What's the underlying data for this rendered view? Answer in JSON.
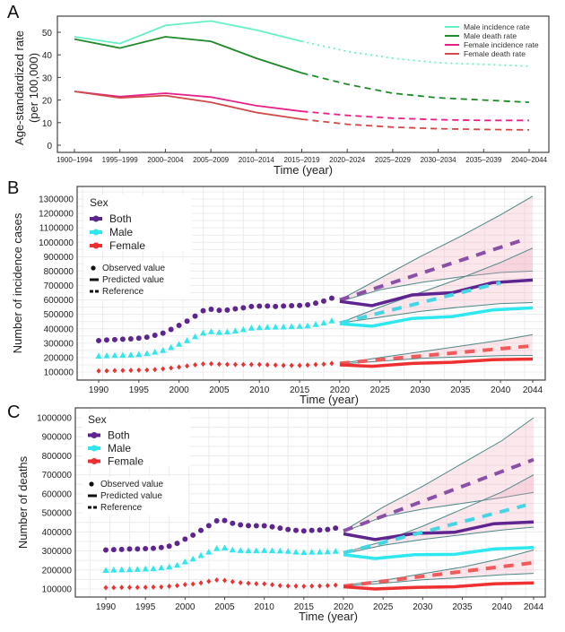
{
  "chart_data": [
    {
      "panel": "A",
      "type": "line",
      "xlabel": "Time (year)",
      "ylabel": [
        "Age-standardized rate",
        "(per 100,000)"
      ],
      "categories": [
        "1900–1994",
        "1995–1999",
        "2000–2004",
        "2005–2009",
        "2010–2014",
        "2015–2019",
        "2020–2024",
        "2025–2029",
        "2030–2034",
        "2035–2039",
        "2040–2044"
      ],
      "yticks": [
        0,
        10,
        20,
        30,
        40,
        50
      ],
      "ylim": [
        -3,
        57
      ],
      "observed_until": "2015–2019",
      "legend_position": "top-right",
      "series": [
        {
          "name": "Male incidence rate",
          "color": "#66f0c8",
          "projected_style": "dotted",
          "values": [
            48,
            45,
            53,
            55,
            51,
            46,
            41.5,
            38.5,
            36.5,
            35.8,
            35
          ]
        },
        {
          "name": "Male death rate",
          "color": "#1f8a2a",
          "projected_style": "dashed",
          "values": [
            47,
            43,
            48,
            46,
            38.5,
            32,
            27,
            23,
            21,
            20,
            19
          ]
        },
        {
          "name": "Female incidence rate",
          "color": "#e8208a",
          "projected_style": "dashed",
          "values": [
            23.8,
            21.5,
            23,
            21.3,
            17.5,
            15,
            13.2,
            12,
            11.3,
            11,
            11
          ]
        },
        {
          "name": "Female death rate",
          "color": "#d04848",
          "projected_style": "dashed",
          "values": [
            23.8,
            21,
            22,
            19,
            14.5,
            11.5,
            9.3,
            8,
            7.3,
            7,
            6.8
          ]
        }
      ]
    },
    {
      "panel": "B",
      "type": "line",
      "xlabel": "Time (year)",
      "ylabel": "Number of incidence cases",
      "xticks": [
        1990,
        1995,
        2000,
        2005,
        2010,
        2015,
        2020,
        2025,
        2030,
        2035,
        2040,
        2044
      ],
      "yticks": [
        100000,
        200000,
        300000,
        400000,
        500000,
        600000,
        700000,
        800000,
        900000,
        1000000,
        1100000,
        1200000,
        1300000
      ],
      "ylim": [
        50000,
        1350000
      ],
      "xlim": [
        1988,
        2047
      ],
      "legend_title": "Sex",
      "legend_position": "top-left",
      "legend_styles": [
        "Observed value",
        "Predicted value",
        "Reference"
      ],
      "observed_years": [
        1990,
        2019
      ],
      "predicted_years": [
        2020,
        2024,
        2029,
        2034,
        2039,
        2044
      ],
      "band_years": [
        2020,
        2025,
        2030,
        2035,
        2040,
        2044
      ],
      "series": [
        {
          "name": "Both",
          "color": "#5e2590",
          "ref_color": "#8a4fa6",
          "marker": "circle",
          "observed": [
            318000,
            322000,
            325000,
            328000,
            330000,
            335000,
            342000,
            355000,
            370000,
            395000,
            423000,
            453000,
            488000,
            525000,
            535000,
            528000,
            530000,
            538000,
            545000,
            555000,
            557000,
            558000,
            555000,
            558000,
            560000,
            562000,
            566000,
            578000,
            592000,
            612000
          ],
          "predicted": [
            590000,
            560000,
            635000,
            650000,
            720000,
            738000
          ],
          "reference": [
            [
              2020,
              600000
            ],
            [
              2043,
              1020000
            ]
          ],
          "band_upper": [
            600000,
            750000,
            900000,
            1040000,
            1190000,
            1320000
          ],
          "band_lower": [
            590000,
            670000,
            720000,
            760000,
            790000,
            800000
          ]
        },
        {
          "name": "Male",
          "color": "#2ee8f0",
          "ref_color": "#45d6e6",
          "marker": "triangle",
          "observed": [
            210000,
            213000,
            215000,
            216000,
            218000,
            222000,
            228000,
            238000,
            250000,
            270000,
            293000,
            318000,
            345000,
            370000,
            380000,
            375000,
            378000,
            385000,
            395000,
            405000,
            408000,
            410000,
            412000,
            413000,
            415000,
            417000,
            420000,
            430000,
            440000,
            455000
          ],
          "predicted": [
            435000,
            418000,
            472000,
            485000,
            530000,
            545000
          ],
          "reference": [
            [
              2020,
              440000
            ],
            [
              2040,
              720000
            ]
          ],
          "band_upper": [
            440000,
            550000,
            650000,
            750000,
            860000,
            960000
          ],
          "band_lower": [
            440000,
            480000,
            520000,
            550000,
            575000,
            582000
          ]
        },
        {
          "name": "Female",
          "color": "#ee3030",
          "ref_color": "#ef5a5a",
          "marker": "diamond",
          "observed": [
            108000,
            109000,
            110000,
            111000,
            112000,
            113000,
            114000,
            117000,
            122000,
            128000,
            134000,
            142000,
            150000,
            156000,
            158000,
            155000,
            153000,
            152000,
            152000,
            152000,
            152000,
            150000,
            148000,
            146000,
            146000,
            146000,
            148000,
            152000,
            155000,
            160000
          ],
          "predicted": [
            150000,
            140000,
            160000,
            168000,
            185000,
            190000
          ],
          "reference": [
            [
              2020,
              160000
            ],
            [
              2044,
              282000
            ]
          ],
          "band_upper": [
            160000,
            200000,
            240000,
            280000,
            320000,
            360000
          ],
          "band_lower": [
            155000,
            175000,
            195000,
            205000,
            213000,
            215000
          ]
        }
      ]
    },
    {
      "panel": "C",
      "type": "line",
      "xlabel": "Time (year)",
      "ylabel": "Number of deaths",
      "xticks": [
        1990,
        1995,
        2000,
        2005,
        2010,
        2015,
        2020,
        2025,
        2030,
        2035,
        2040,
        2044
      ],
      "yticks": [
        100000,
        200000,
        300000,
        400000,
        500000,
        600000,
        700000,
        800000,
        900000,
        1000000
      ],
      "ylim": [
        60000,
        1020000
      ],
      "xlim": [
        1988,
        2047
      ],
      "legend_title": "Sex",
      "legend_position": "top-left",
      "legend_styles": [
        "Observed value",
        "Predicted value",
        "Reference"
      ],
      "observed_years": [
        1990,
        2019
      ],
      "predicted_years": [
        2020,
        2024,
        2029,
        2034,
        2039,
        2044
      ],
      "band_years": [
        2020,
        2025,
        2030,
        2035,
        2040,
        2044
      ],
      "series": [
        {
          "name": "Both",
          "color": "#5e2590",
          "ref_color": "#8a4fa6",
          "marker": "circle",
          "observed": [
            305000,
            307000,
            308000,
            310000,
            310000,
            312000,
            314000,
            318000,
            325000,
            340000,
            362000,
            383000,
            408000,
            433000,
            458000,
            460000,
            445000,
            437000,
            433000,
            432000,
            432000,
            427000,
            420000,
            413000,
            408000,
            405000,
            408000,
            410000,
            413000,
            420000
          ],
          "predicted": [
            390000,
            360000,
            392000,
            398000,
            443000,
            452000
          ],
          "reference": [
            [
              2020,
              405000
            ],
            [
              2044,
              780000
            ]
          ],
          "band_upper": [
            405000,
            530000,
            640000,
            760000,
            880000,
            1000000
          ],
          "band_lower": [
            400000,
            480000,
            520000,
            550000,
            580000,
            608000
          ]
        },
        {
          "name": "Male",
          "color": "#2ee8f0",
          "ref_color": "#45d6e6",
          "marker": "triangle",
          "observed": [
            198000,
            200000,
            201000,
            202000,
            203000,
            205000,
            207000,
            211000,
            216000,
            225000,
            243000,
            258000,
            276000,
            294000,
            313000,
            316000,
            305000,
            302000,
            301000,
            301000,
            302000,
            301000,
            300000,
            298000,
            294000,
            292000,
            294000,
            294000,
            295000,
            298000
          ],
          "predicted": [
            280000,
            260000,
            280000,
            282000,
            310000,
            318000
          ],
          "reference": [
            [
              2020,
              290000
            ],
            [
              2043,
              540000
            ]
          ],
          "band_upper": [
            290000,
            350000,
            430000,
            520000,
            610000,
            700000
          ],
          "band_lower": [
            285000,
            330000,
            360000,
            385000,
            410000,
            425000
          ]
        },
        {
          "name": "Female",
          "color": "#ee3030",
          "ref_color": "#ef5a5a",
          "marker": "diamond",
          "observed": [
            107000,
            107000,
            108000,
            108000,
            108000,
            109000,
            110000,
            111000,
            114000,
            118000,
            123000,
            126000,
            132000,
            140000,
            147000,
            145000,
            138000,
            133000,
            130000,
            128000,
            127000,
            122000,
            118000,
            116000,
            115000,
            114000,
            115000,
            116000,
            118000,
            120000
          ],
          "predicted": [
            112000,
            100000,
            108000,
            112000,
            127000,
            132000
          ],
          "reference": [
            [
              2020,
              115000
            ],
            [
              2044,
              238000
            ]
          ],
          "band_upper": [
            120000,
            145000,
            180000,
            215000,
            260000,
            305000
          ],
          "band_lower": [
            115000,
            130000,
            148000,
            160000,
            175000,
            182000
          ]
        }
      ]
    }
  ],
  "panel_labels": [
    "A",
    "B",
    "C"
  ]
}
